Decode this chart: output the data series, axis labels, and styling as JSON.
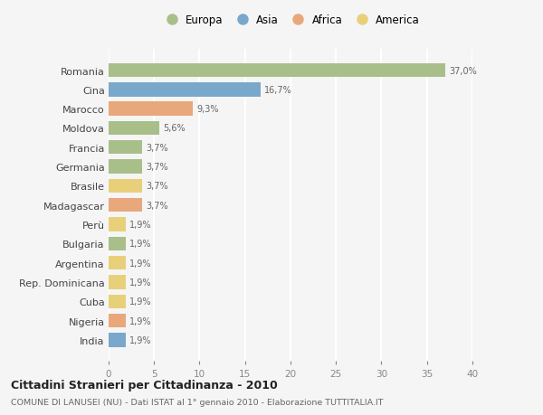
{
  "countries": [
    "Romania",
    "Cina",
    "Marocco",
    "Moldova",
    "Francia",
    "Germania",
    "Brasile",
    "Madagascar",
    "Perù",
    "Bulgaria",
    "Argentina",
    "Rep. Dominicana",
    "Cuba",
    "Nigeria",
    "India"
  ],
  "values": [
    37.0,
    16.7,
    9.3,
    5.6,
    3.7,
    3.7,
    3.7,
    3.7,
    1.9,
    1.9,
    1.9,
    1.9,
    1.9,
    1.9,
    1.9
  ],
  "labels": [
    "37,0%",
    "16,7%",
    "9,3%",
    "5,6%",
    "3,7%",
    "3,7%",
    "3,7%",
    "3,7%",
    "1,9%",
    "1,9%",
    "1,9%",
    "1,9%",
    "1,9%",
    "1,9%",
    "1,9%"
  ],
  "continents": [
    "Europa",
    "Asia",
    "Africa",
    "Europa",
    "Europa",
    "Europa",
    "America",
    "Africa",
    "America",
    "Europa",
    "America",
    "America",
    "America",
    "Africa",
    "Asia"
  ],
  "continent_colors": {
    "Europa": "#a8bf8a",
    "Asia": "#7aa8cc",
    "Africa": "#e8a87c",
    "America": "#e8d07a"
  },
  "legend_order": [
    "Europa",
    "Asia",
    "Africa",
    "America"
  ],
  "legend_colors": [
    "#a8bf8a",
    "#7aa8cc",
    "#e8a87c",
    "#e8d07a"
  ],
  "title": "Cittadini Stranieri per Cittadinanza - 2010",
  "subtitle": "COMUNE DI LANUSEI (NU) - Dati ISTAT al 1° gennaio 2010 - Elaborazione TUTTITALIA.IT",
  "xlim": [
    0,
    40
  ],
  "xticks": [
    0,
    5,
    10,
    15,
    20,
    25,
    30,
    35,
    40
  ],
  "background_color": "#f5f5f5",
  "grid_color": "#ffffff",
  "bar_height": 0.72
}
